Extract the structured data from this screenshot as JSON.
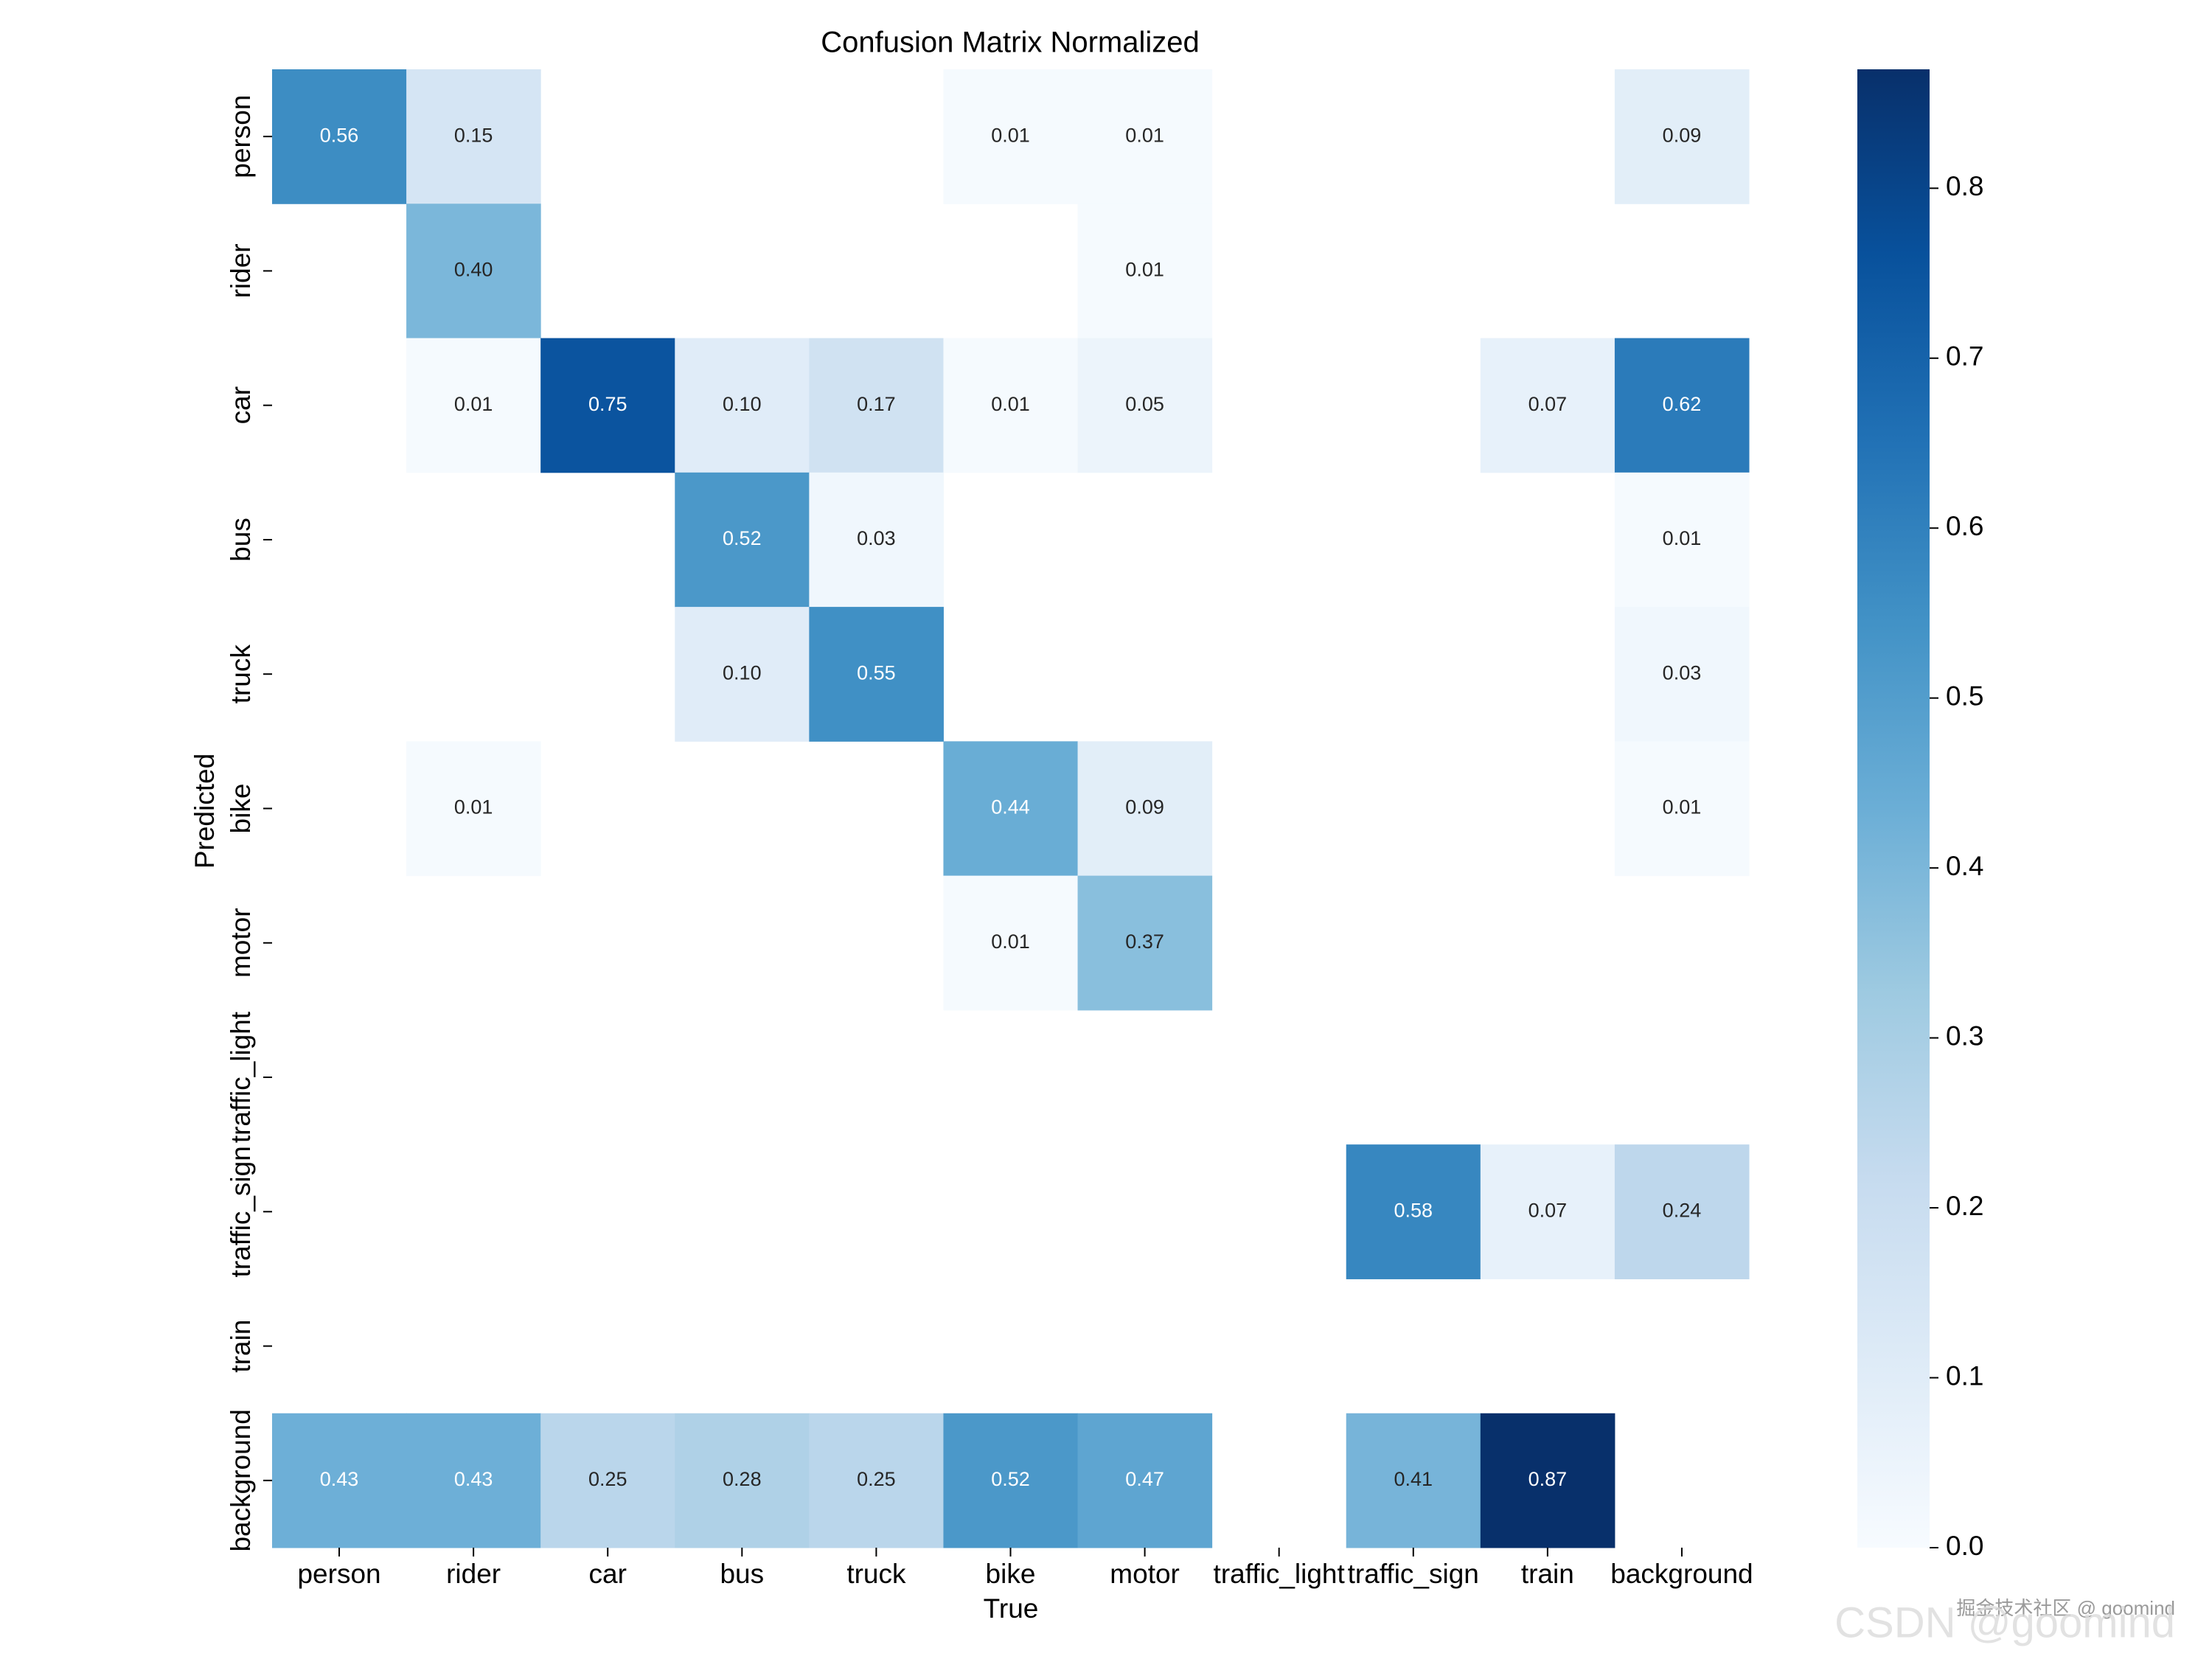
{
  "chart_data": {
    "type": "heatmap",
    "title": "Confusion Matrix Normalized",
    "x_label": "True",
    "y_label": "Predicted",
    "x_categories": [
      "person",
      "rider",
      "car",
      "bus",
      "truck",
      "bike",
      "motor",
      "traffic_light",
      "traffic_sign",
      "train",
      "background"
    ],
    "y_categories": [
      "person",
      "rider",
      "car",
      "bus",
      "truck",
      "bike",
      "motor",
      "traffic_light",
      "traffic_sign",
      "train",
      "background"
    ],
    "matrix": [
      [
        0.56,
        0.15,
        null,
        null,
        null,
        0.01,
        0.01,
        null,
        null,
        null,
        0.09
      ],
      [
        null,
        0.4,
        null,
        null,
        null,
        null,
        0.01,
        null,
        null,
        null,
        null
      ],
      [
        null,
        0.01,
        0.75,
        0.1,
        0.17,
        0.01,
        0.05,
        null,
        null,
        0.07,
        0.62
      ],
      [
        null,
        null,
        null,
        0.52,
        0.03,
        null,
        null,
        null,
        null,
        null,
        0.01
      ],
      [
        null,
        null,
        null,
        0.1,
        0.55,
        null,
        null,
        null,
        null,
        null,
        0.03
      ],
      [
        null,
        0.01,
        null,
        null,
        null,
        0.44,
        0.09,
        null,
        null,
        null,
        0.01
      ],
      [
        null,
        null,
        null,
        null,
        null,
        0.01,
        0.37,
        null,
        null,
        null,
        null
      ],
      [
        null,
        null,
        null,
        null,
        null,
        null,
        null,
        null,
        null,
        null,
        null
      ],
      [
        null,
        null,
        null,
        null,
        null,
        null,
        null,
        null,
        0.58,
        0.07,
        0.24
      ],
      [
        null,
        null,
        null,
        null,
        null,
        null,
        null,
        null,
        null,
        null,
        null
      ],
      [
        0.43,
        0.43,
        0.25,
        0.28,
        0.25,
        0.52,
        0.47,
        null,
        0.41,
        0.87,
        null
      ]
    ],
    "value_labels": [
      [
        "0.56",
        "0.15",
        null,
        null,
        null,
        "0.01",
        "0.01",
        null,
        null,
        null,
        "0.09"
      ],
      [
        null,
        "0.40",
        null,
        null,
        null,
        null,
        "0.01",
        null,
        null,
        null,
        null
      ],
      [
        null,
        "0.01",
        "0.75",
        "0.10",
        "0.17",
        "0.01",
        "0.05",
        null,
        null,
        "0.07",
        "0.62"
      ],
      [
        null,
        null,
        null,
        "0.52",
        "0.03",
        null,
        null,
        null,
        null,
        null,
        "0.01"
      ],
      [
        null,
        null,
        null,
        "0.10",
        "0.55",
        null,
        null,
        null,
        null,
        null,
        "0.03"
      ],
      [
        null,
        "0.01",
        null,
        null,
        null,
        "0.44",
        "0.09",
        null,
        null,
        null,
        "0.01"
      ],
      [
        null,
        null,
        null,
        null,
        null,
        "0.01",
        "0.37",
        null,
        null,
        null,
        null
      ],
      [
        null,
        null,
        null,
        null,
        null,
        null,
        null,
        null,
        null,
        null,
        null
      ],
      [
        null,
        null,
        null,
        null,
        null,
        null,
        null,
        null,
        "0.58",
        "0.07",
        "0.24"
      ],
      [
        null,
        null,
        null,
        null,
        null,
        null,
        null,
        null,
        null,
        null,
        null
      ],
      [
        "0.43",
        "0.43",
        "0.25",
        "0.28",
        "0.25",
        "0.52",
        "0.47",
        null,
        "0.41",
        "0.87",
        null
      ]
    ],
    "colormap": [
      "#f7fbff",
      "#deebf7",
      "#c6dbef",
      "#9ecae1",
      "#6baed6",
      "#4292c6",
      "#2171b5",
      "#08519c",
      "#08306b"
    ],
    "colorbar": {
      "ylim": [
        0,
        0.87
      ],
      "yticks": [
        {
          "value": 0,
          "label": "0.0"
        },
        0.1,
        0.2,
        0.3,
        0.4,
        0.5,
        0.6,
        0.7,
        0.8
      ]
    },
    "watermark": [
      "掘金技术社区 @ goomind",
      "CSDN @goomind"
    ]
  }
}
